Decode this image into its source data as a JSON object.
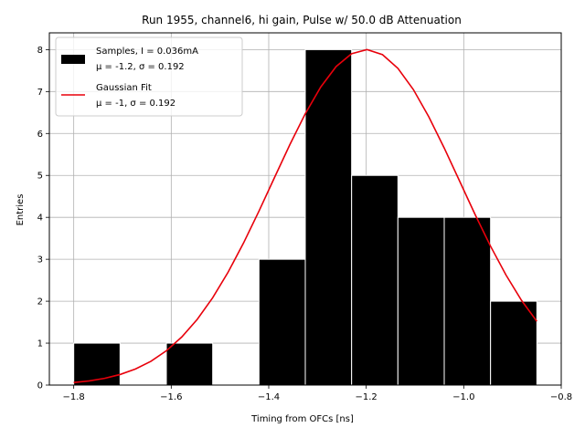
{
  "chart_data": {
    "type": "bar",
    "title": "Run 1955, channel6, hi gain, Pulse w/ 50.0 dB Attenuation",
    "xlabel": "Timing from OFCs [ns]",
    "ylabel": "Entries",
    "xlim": [
      -1.85,
      -0.8
    ],
    "ylim": [
      0,
      8.4
    ],
    "xticks": [
      -1.8,
      -1.6,
      -1.4,
      -1.2,
      -1.0,
      -0.8
    ],
    "xtick_labels": [
      "−1.8",
      "−1.6",
      "−1.4",
      "−1.2",
      "−1.0",
      "−0.8"
    ],
    "yticks": [
      0,
      1,
      2,
      3,
      4,
      5,
      6,
      7,
      8
    ],
    "ytick_labels": [
      "0",
      "1",
      "2",
      "3",
      "4",
      "5",
      "6",
      "7",
      "8"
    ],
    "grid": true,
    "legend_position": "top-left",
    "histogram": {
      "name": "Samples, I = 0.036mA",
      "stats": "μ = -1.2, σ = 0.192",
      "color": "#000000",
      "edge_color": "#ffffff",
      "bins": [
        {
          "x0": -1.8,
          "x1": -1.705,
          "count": 1
        },
        {
          "x0": -1.705,
          "x1": -1.61,
          "count": 0
        },
        {
          "x0": -1.61,
          "x1": -1.515,
          "count": 1
        },
        {
          "x0": -1.515,
          "x1": -1.42,
          "count": 0
        },
        {
          "x0": -1.42,
          "x1": -1.325,
          "count": 3
        },
        {
          "x0": -1.325,
          "x1": -1.23,
          "count": 8
        },
        {
          "x0": -1.23,
          "x1": -1.135,
          "count": 5
        },
        {
          "x0": -1.135,
          "x1": -1.04,
          "count": 4
        },
        {
          "x0": -1.04,
          "x1": -0.945,
          "count": 4
        },
        {
          "x0": -0.945,
          "x1": -0.85,
          "count": 2
        }
      ]
    },
    "fit": {
      "name": "Gaussian Fit",
      "stats": "μ = -1, σ = 0.192",
      "color": "#e8000b",
      "amplitude": 8.0,
      "mu": -1.2,
      "sigma": 0.192,
      "x_start": -1.8,
      "x_end": -0.85
    }
  }
}
